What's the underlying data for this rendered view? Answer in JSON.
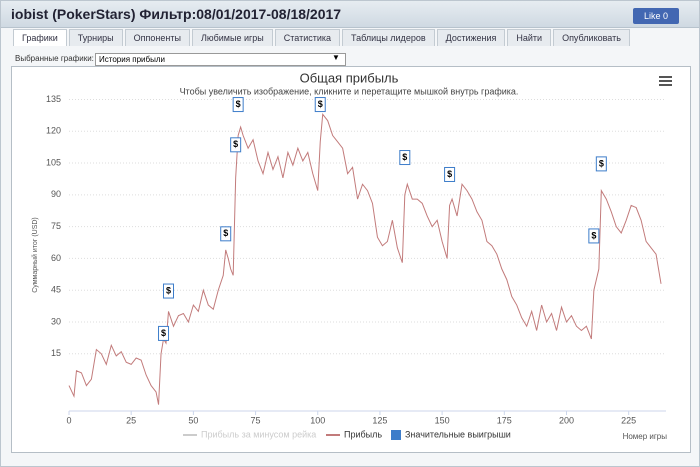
{
  "header": {
    "title": "iobist (PokerStars) Фильтр:08/01/2017-08/18/2017",
    "like_button": "Like",
    "like_count": 0
  },
  "tabs": [
    "Графики",
    "Турниры",
    "Оппоненты",
    "Любимые игры",
    "Статистика",
    "Таблицы лидеров",
    "Достижения",
    "Найти",
    "Опубликовать"
  ],
  "selector": {
    "label": "Выбранные графики:",
    "value": "История прибыли"
  },
  "chart_data": {
    "type": "line",
    "title": "Общая прибыль",
    "subtitle": "Чтобы увеличить изображение, кликните и перетащите мышкой внутрь графика.",
    "y_label": "Суммарный итог (USD)",
    "x_label": "Номер игры",
    "xlim": [
      0,
      240
    ],
    "xticks": [
      0,
      25,
      50,
      75,
      100,
      125,
      150,
      175,
      200,
      225
    ],
    "ylim": [
      -12,
      139
    ],
    "yticks": [
      15,
      30,
      45,
      60,
      75,
      90,
      105,
      120,
      135
    ],
    "grid": true,
    "series": [
      {
        "name": "Прибыль за минусом рейка",
        "color": "#cccccc",
        "visible": false
      },
      {
        "name": "Прибыль",
        "color": "#c27b7b",
        "x": [
          0,
          2,
          3,
          5,
          7,
          9,
          11,
          13,
          15,
          17,
          19,
          21,
          23,
          25,
          27,
          29,
          31,
          33,
          35,
          36,
          37,
          38,
          39,
          40,
          42,
          44,
          46,
          48,
          50,
          52,
          54,
          56,
          58,
          60,
          62,
          63,
          64,
          65,
          66,
          67,
          68,
          69,
          70,
          72,
          74,
          76,
          78,
          80,
          82,
          84,
          86,
          88,
          90,
          92,
          94,
          96,
          98,
          100,
          101,
          102,
          104,
          106,
          108,
          110,
          112,
          114,
          116,
          118,
          120,
          122,
          124,
          126,
          128,
          130,
          132,
          134,
          135,
          136,
          138,
          140,
          142,
          144,
          146,
          148,
          150,
          152,
          153,
          154,
          156,
          158,
          160,
          162,
          164,
          166,
          168,
          170,
          172,
          174,
          176,
          178,
          180,
          182,
          184,
          186,
          188,
          190,
          192,
          194,
          196,
          198,
          200,
          202,
          204,
          206,
          208,
          210,
          211,
          212,
          213,
          214,
          216,
          218,
          220,
          222,
          224,
          226,
          228,
          230,
          232,
          234,
          236,
          237,
          238
        ],
        "values": [
          0,
          -5,
          7,
          6,
          0,
          3,
          17,
          15,
          10,
          19,
          14,
          16,
          11,
          10,
          13,
          12,
          5,
          0,
          -3,
          -9,
          15,
          22,
          20,
          35,
          28,
          33,
          34,
          30,
          38,
          35,
          45,
          38,
          36,
          45,
          52,
          64,
          60,
          55,
          52,
          98,
          118,
          122,
          118,
          112,
          116,
          106,
          100,
          110,
          102,
          108,
          98,
          110,
          104,
          112,
          106,
          110,
          100,
          92,
          115,
          128,
          125,
          118,
          115,
          112,
          100,
          103,
          88,
          95,
          92,
          86,
          70,
          66,
          68,
          78,
          65,
          58,
          90,
          95,
          88,
          88,
          86,
          80,
          75,
          78,
          68,
          60,
          85,
          88,
          80,
          95,
          92,
          88,
          82,
          78,
          68,
          66,
          62,
          55,
          50,
          42,
          38,
          32,
          28,
          35,
          26,
          38,
          30,
          34,
          26,
          37,
          30,
          33,
          28,
          26,
          28,
          22,
          45,
          50,
          55,
          92,
          88,
          82,
          75,
          72,
          78,
          85,
          84,
          78,
          68,
          65,
          62,
          55,
          48
        ]
      },
      {
        "name": "Значительные выигрыши",
        "color": "#3d7dca",
        "flag_label": "$",
        "x": [
          38,
          40,
          63,
          67,
          68,
          101,
          135,
          153,
          211,
          214
        ],
        "values": [
          18,
          38,
          65,
          107,
          126,
          126,
          101,
          93,
          64,
          98
        ]
      }
    ]
  }
}
